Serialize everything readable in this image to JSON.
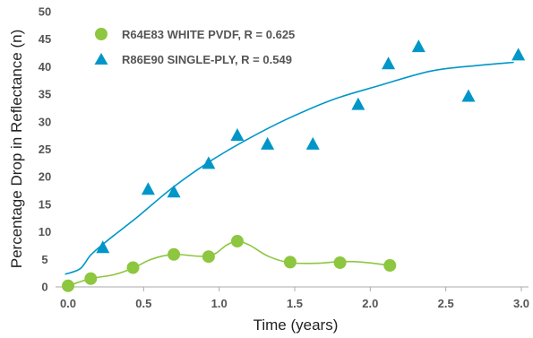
{
  "chart_data": {
    "type": "scatter",
    "xlabel": "Time (years)",
    "ylabel": "Percentage Drop in Reflectance (n)",
    "xlim": [
      0,
      3.0
    ],
    "ylim": [
      0,
      50
    ],
    "x_ticks": [
      "0.0",
      "0.5",
      "1.0",
      "1.5",
      "2.0",
      "2.5",
      "3.0"
    ],
    "y_ticks": [
      "0",
      "5",
      "10",
      "15",
      "20",
      "25",
      "30",
      "35",
      "40",
      "45",
      "50"
    ],
    "grid": false,
    "legend_position": "top-left",
    "series": [
      {
        "name": "R64E83 WHITE PVDF, R = 0.625",
        "marker": "circle",
        "color": "#8dc63f",
        "points": [
          {
            "x": 0.0,
            "y": 0.2
          },
          {
            "x": 0.15,
            "y": 1.5
          },
          {
            "x": 0.43,
            "y": 3.5
          },
          {
            "x": 0.7,
            "y": 5.9
          },
          {
            "x": 0.93,
            "y": 5.5
          },
          {
            "x": 1.12,
            "y": 8.3
          },
          {
            "x": 1.47,
            "y": 4.5
          },
          {
            "x": 1.8,
            "y": 4.4
          },
          {
            "x": 2.13,
            "y": 3.9
          }
        ],
        "trend": [
          {
            "x": 0.0,
            "y": 0.2
          },
          {
            "x": 0.15,
            "y": 1.5
          },
          {
            "x": 0.3,
            "y": 2.2
          },
          {
            "x": 0.43,
            "y": 3.4
          },
          {
            "x": 0.55,
            "y": 5.0
          },
          {
            "x": 0.7,
            "y": 5.9
          },
          {
            "x": 0.93,
            "y": 5.6
          },
          {
            "x": 1.05,
            "y": 7.6
          },
          {
            "x": 1.12,
            "y": 8.3
          },
          {
            "x": 1.2,
            "y": 7.6
          },
          {
            "x": 1.33,
            "y": 5.5
          },
          {
            "x": 1.47,
            "y": 4.4
          },
          {
            "x": 1.65,
            "y": 4.3
          },
          {
            "x": 1.8,
            "y": 4.6
          },
          {
            "x": 1.95,
            "y": 4.5
          },
          {
            "x": 2.13,
            "y": 3.9
          }
        ]
      },
      {
        "name": "R86E90 SINGLE-PLY, R = 0.549",
        "marker": "triangle",
        "color": "#0096c8",
        "points": [
          {
            "x": 0.23,
            "y": 7.2
          },
          {
            "x": 0.53,
            "y": 17.8
          },
          {
            "x": 0.7,
            "y": 17.3
          },
          {
            "x": 0.93,
            "y": 22.5
          },
          {
            "x": 1.12,
            "y": 27.6
          },
          {
            "x": 1.32,
            "y": 26.0
          },
          {
            "x": 1.62,
            "y": 26.0
          },
          {
            "x": 1.92,
            "y": 33.2
          },
          {
            "x": 2.12,
            "y": 40.6
          },
          {
            "x": 2.32,
            "y": 43.7
          },
          {
            "x": 2.65,
            "y": 34.7
          },
          {
            "x": 2.98,
            "y": 42.2
          }
        ],
        "trend": [
          {
            "x": -0.02,
            "y": 2.3
          },
          {
            "x": 0.08,
            "y": 3.3
          },
          {
            "x": 0.15,
            "y": 5.8
          },
          {
            "x": 0.25,
            "y": 8.2
          },
          {
            "x": 0.45,
            "y": 12.5
          },
          {
            "x": 0.7,
            "y": 18.2
          },
          {
            "x": 0.95,
            "y": 23.0
          },
          {
            "x": 1.2,
            "y": 27.0
          },
          {
            "x": 1.45,
            "y": 30.5
          },
          {
            "x": 1.75,
            "y": 34.0
          },
          {
            "x": 2.05,
            "y": 36.5
          },
          {
            "x": 2.4,
            "y": 39.2
          },
          {
            "x": 2.7,
            "y": 40.2
          },
          {
            "x": 2.95,
            "y": 40.8
          }
        ]
      }
    ]
  }
}
